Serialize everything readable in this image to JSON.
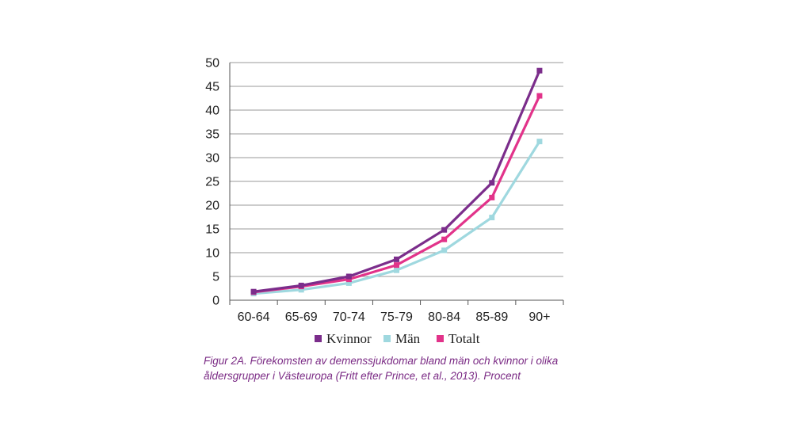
{
  "chart_data": {
    "type": "line",
    "categories": [
      "60-64",
      "65-69",
      "70-74",
      "75-79",
      "80-84",
      "85-89",
      "90+"
    ],
    "series": [
      {
        "name": "Kvinnor",
        "color": "#7b2d8b",
        "values": [
          1.8,
          3.1,
          5.0,
          8.6,
          14.8,
          24.7,
          48.3
        ]
      },
      {
        "name": "Män",
        "color": "#9fd8df",
        "values": [
          1.4,
          2.2,
          3.6,
          6.3,
          10.5,
          17.4,
          33.4
        ]
      },
      {
        "name": "Totalt",
        "color": "#e2338a",
        "values": [
          1.7,
          2.9,
          4.4,
          7.4,
          12.8,
          21.6,
          43.0
        ]
      }
    ],
    "ylim": [
      0,
      50
    ],
    "yticks": [
      0,
      5,
      10,
      15,
      20,
      25,
      30,
      35,
      40,
      45,
      50
    ],
    "grid": true,
    "legend_position": "bottom"
  },
  "caption": {
    "line1": "Figur 2A. Förekomsten av demenssjukdomar bland män och kvinnor i olika",
    "line2": "åldersgrupper i Västeuropa (Fritt efter Prince, et al., 2013). Procent"
  }
}
